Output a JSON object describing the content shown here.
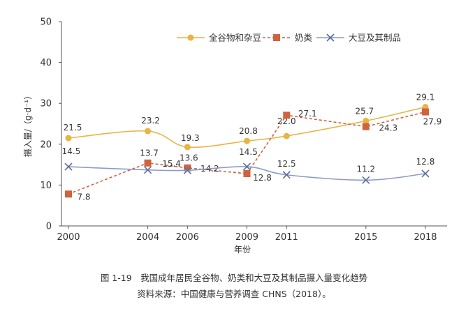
{
  "chart_data": {
    "type": "line",
    "title": "",
    "xlabel": "年份",
    "ylabel": "摄入量/（g·d⁻¹）",
    "x": [
      2000,
      2004,
      2006,
      2009,
      2011,
      2015,
      2018
    ],
    "x_tick_labels": [
      "2000",
      "2004",
      "2006",
      "2009",
      "2011",
      "2015",
      "2018"
    ],
    "ylim": [
      0,
      50
    ],
    "y_ticks": [
      0,
      10,
      20,
      30,
      40,
      50
    ],
    "grid": false,
    "legend_placement": "top-right",
    "series": [
      {
        "name": "全谷物和杂豆",
        "color": "#e9b443",
        "marker": "circle",
        "style": "solid",
        "values": [
          21.5,
          23.2,
          19.3,
          20.8,
          22.0,
          25.7,
          29.1
        ]
      },
      {
        "name": "奶类",
        "color": "#d0623d",
        "marker": "square",
        "style": "dashed",
        "values": [
          7.8,
          15.4,
          14.2,
          12.8,
          27.1,
          24.3,
          27.9
        ]
      },
      {
        "name": "大豆及其制品",
        "color": "#8c9bc9",
        "marker": "x",
        "style": "solid",
        "values": [
          14.5,
          13.7,
          13.6,
          14.5,
          12.5,
          11.2,
          12.8
        ]
      }
    ]
  },
  "caption": {
    "line1": "图 1-19　我国成年居民全谷物、奶类和大豆及其制品摄入量变化趋势",
    "line2": "资料来源：中国健康与营养调查 CHNS（2018）。"
  }
}
